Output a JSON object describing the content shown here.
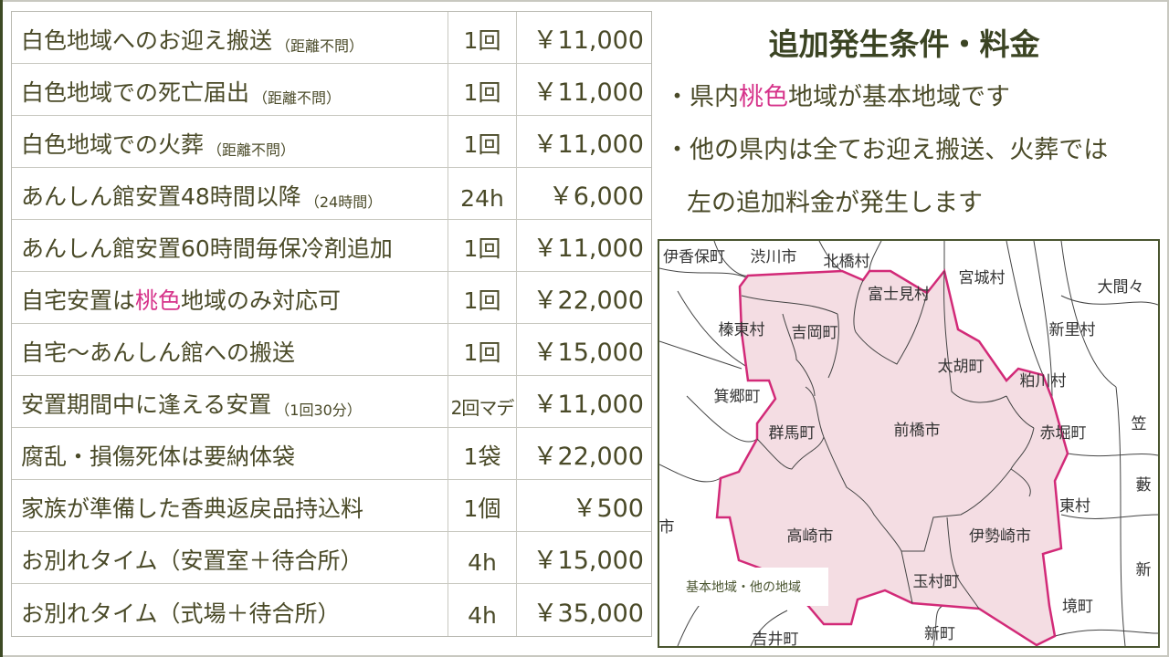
{
  "table": {
    "rows": [
      {
        "item": "白色地域へのお迎え搬送",
        "note": "（距離不問）",
        "unit": "1回",
        "price": "￥11,000"
      },
      {
        "item": "白色地域での死亡届出",
        "note": "（距離不問）",
        "unit": "1回",
        "price": "￥11,000"
      },
      {
        "item": "白色地域での火葬",
        "note": "（距離不問）",
        "unit": "1回",
        "price": "￥11,000"
      },
      {
        "item": "あんしん館安置48時間以降",
        "note": "（24時間）",
        "unit": "24h",
        "price": "￥6,000"
      },
      {
        "item": "あんしん館安置60時間毎保冷剤追加",
        "note": "",
        "unit": "1回",
        "price": "￥11,000"
      },
      {
        "item_pre": "自宅安置は",
        "item_pink": "桃色",
        "item_post": "地域のみ対応可",
        "unit": "1回",
        "price": "￥22,000"
      },
      {
        "item": "自宅～あんしん館への搬送",
        "note": "",
        "unit": "1回",
        "price": "￥15,000"
      },
      {
        "item": "安置期間中に逢える安置",
        "note": "（1回30分）",
        "unit": "2回マデ",
        "price": "￥11,000"
      },
      {
        "item": "腐乱・損傷死体は要納体袋",
        "note": "",
        "unit": "1袋",
        "price": "￥22,000"
      },
      {
        "item": "家族が準備した香典返戻品持込料",
        "note": "",
        "unit": "1個",
        "price": "￥500"
      },
      {
        "item": "お別れタイム（安置室＋待合所）",
        "note": "",
        "unit": "4h",
        "price": "￥15,000"
      },
      {
        "item": "お別れタイム（式場＋待合所）",
        "note": "",
        "unit": "4h",
        "price": "￥35,000"
      }
    ]
  },
  "panel": {
    "title": "追加発生条件・料金",
    "bullet1_pre": "・県内",
    "bullet1_pink": "桃色",
    "bullet1_post": "地域が基本地域です",
    "bullet2_line1": "・他の県内は全てお迎え搬送、火葬では",
    "bullet2_line2": "左の追加料金が発生します"
  },
  "map": {
    "legend": "基本地域・他の地域",
    "labels": [
      "伊香保町",
      "渋川市",
      "北橋村",
      "宮城村",
      "大間々",
      "榛東村",
      "吉岡町",
      "富士見村",
      "新里村",
      "太胡町",
      "粕川村",
      "箕郷町",
      "群馬町",
      "前橋市",
      "赤堀町",
      "笠",
      "藪",
      "東村",
      "高崎市",
      "伊勢崎市",
      "市",
      "新",
      "玉村町",
      "境町",
      "吉井町",
      "新町"
    ]
  },
  "colors": {
    "text": "#4a4a28",
    "accent_pink": "#d6338a",
    "region_fill": "#f4dde3",
    "region_border": "#d22a78"
  }
}
